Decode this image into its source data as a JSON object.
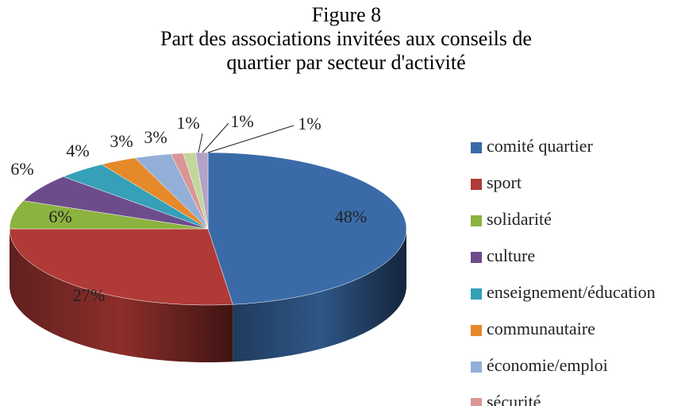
{
  "chart_data": {
    "type": "pie3d",
    "title": "Figure 8",
    "subtitle": "Part des associations invitées aux conseils de quartier par secteur d'activité",
    "categories": [
      "comité quartier",
      "sport",
      "solidarité",
      "culture",
      "enseignement/éducation",
      "communautaire",
      "économie/emploi",
      "sécurité",
      null,
      null
    ],
    "values": [
      48,
      27,
      6,
      6,
      4,
      3,
      3,
      1,
      1,
      1
    ],
    "value_labels": [
      "48%",
      "27%",
      "6%",
      "6%",
      "4%",
      "3%",
      "3%",
      "1%",
      "1%",
      "1%"
    ],
    "colors": [
      "#3a6ba8",
      "#b03a36",
      "#8cb23f",
      "#6d4c8c",
      "#35a0b7",
      "#e6892b",
      "#93afd7",
      "#d99694",
      "#c3d69b",
      "#b3a2c7"
    ],
    "legend": "right"
  }
}
